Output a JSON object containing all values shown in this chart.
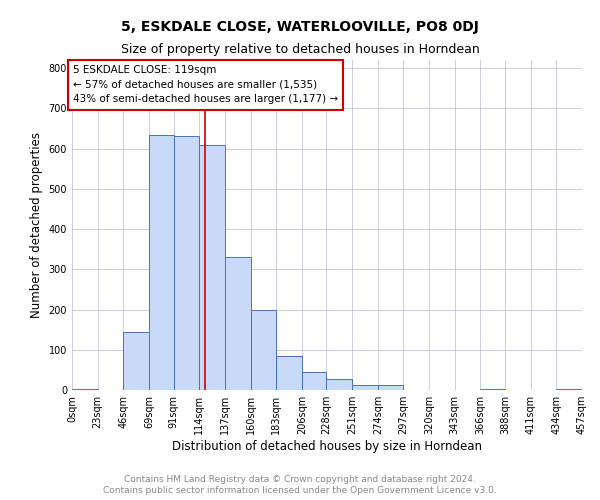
{
  "title": "5, ESKDALE CLOSE, WATERLOOVILLE, PO8 0DJ",
  "subtitle": "Size of property relative to detached houses in Horndean",
  "xlabel": "Distribution of detached houses by size in Horndean",
  "ylabel": "Number of detached properties",
  "bin_edges": [
    0,
    23,
    46,
    69,
    91,
    114,
    137,
    160,
    183,
    206,
    228,
    251,
    274,
    297,
    320,
    343,
    366,
    388,
    411,
    434,
    457
  ],
  "bin_labels": [
    "0sqm",
    "23sqm",
    "46sqm",
    "69sqm",
    "91sqm",
    "114sqm",
    "137sqm",
    "160sqm",
    "183sqm",
    "206sqm",
    "228sqm",
    "251sqm",
    "274sqm",
    "297sqm",
    "320sqm",
    "343sqm",
    "366sqm",
    "388sqm",
    "411sqm",
    "434sqm",
    "457sqm"
  ],
  "bar_heights": [
    2,
    0,
    143,
    634,
    632,
    609,
    330,
    200,
    84,
    44,
    27,
    12,
    12,
    0,
    0,
    0,
    3,
    0,
    0,
    2
  ],
  "bar_color": "#c9daf8",
  "bar_edge_color": "#4472c4",
  "property_value": 119,
  "vline_color": "#cc0000",
  "annotation_text": "5 ESKDALE CLOSE: 119sqm\n← 57% of detached houses are smaller (1,535)\n43% of semi-detached houses are larger (1,177) →",
  "annotation_box_color": "#ffffff",
  "annotation_box_edge": "#cc0000",
  "ylim": [
    0,
    820
  ],
  "yticks": [
    0,
    100,
    200,
    300,
    400,
    500,
    600,
    700,
    800
  ],
  "footer_line1": "Contains HM Land Registry data © Crown copyright and database right 2024.",
  "footer_line2": "Contains public sector information licensed under the Open Government Licence v3.0.",
  "bg_color": "#ffffff",
  "grid_color": "#c0c8d8",
  "title_fontsize": 10,
  "subtitle_fontsize": 9,
  "label_fontsize": 8.5,
  "tick_fontsize": 7,
  "annot_fontsize": 7.5,
  "footer_fontsize": 6.5
}
